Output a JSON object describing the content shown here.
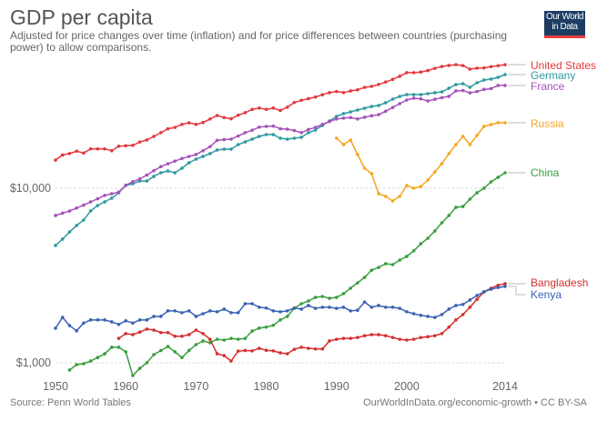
{
  "header": {
    "title": "GDP per capita",
    "subtitle": "Adjusted for price changes over time (inflation) and for price differences between countries (purchasing power) to allow comparisons.",
    "logo_text": "Our World in Data"
  },
  "footer": {
    "source": "Source: Penn World Tables",
    "credit": "OurWorldInData.org/economic-growth • CC BY-SA"
  },
  "chart_data": {
    "type": "line",
    "title": "GDP per capita",
    "xlabel": "",
    "ylabel": "",
    "y_scale": "log",
    "xlim": [
      1950,
      2014
    ],
    "ylim": [
      800,
      60000
    ],
    "x_ticks": [
      1950,
      1960,
      1970,
      1980,
      1990,
      2000,
      2014
    ],
    "x_tick_labels": [
      "1950",
      "1960",
      "1970",
      "1980",
      "1990",
      "2000",
      "2014"
    ],
    "y_ticks": [
      10000,
      1000
    ],
    "y_tick_labels": [
      "$10,000",
      "$1,000"
    ],
    "grid": "horizontal dashed",
    "legend": "inline labels at right end of lines",
    "series": [
      {
        "name": "United States",
        "color": "#e2393e",
        "start": 1950,
        "values": [
          14500,
          15500,
          15800,
          16300,
          15900,
          16800,
          16800,
          16800,
          16400,
          17400,
          17500,
          17600,
          18400,
          18900,
          19800,
          20800,
          21900,
          22300,
          23200,
          23700,
          23200,
          23800,
          24900,
          26100,
          25400,
          25000,
          26200,
          27100,
          28300,
          28800,
          28300,
          28800,
          27900,
          29100,
          31000,
          31900,
          32600,
          33300,
          34300,
          35300,
          35800,
          35300,
          36100,
          36600,
          37800,
          38300,
          39300,
          40600,
          42000,
          43800,
          45900,
          45900,
          46300,
          47200,
          48600,
          49800,
          50500,
          51000,
          50400,
          48100,
          48700,
          48900,
          49700,
          50300,
          51000
        ]
      },
      {
        "name": "Germany",
        "color": "#2f9aa0",
        "start": 1950,
        "values": [
          4700,
          5110,
          5620,
          6120,
          6570,
          7410,
          7960,
          8350,
          8770,
          9420,
          10370,
          10620,
          11000,
          11000,
          11690,
          12260,
          12560,
          12260,
          13020,
          13990,
          14680,
          15210,
          15780,
          16550,
          16740,
          16740,
          17780,
          18430,
          19110,
          19810,
          20290,
          20290,
          19340,
          19110,
          19340,
          19580,
          20780,
          21540,
          22870,
          24280,
          25780,
          26740,
          27380,
          28050,
          28730,
          29420,
          29780,
          30880,
          32360,
          33570,
          34380,
          34380,
          34380,
          34810,
          35240,
          35650,
          37390,
          39230,
          39720,
          37840,
          40200,
          41670,
          42170,
          43180,
          44770
        ]
      },
      {
        "name": "France",
        "color": "#a652ba",
        "start": 1950,
        "values": [
          6980,
          7200,
          7400,
          7700,
          8000,
          8350,
          8700,
          9100,
          9300,
          9500,
          10400,
          10900,
          11300,
          11900,
          12600,
          13300,
          13800,
          14300,
          14800,
          15200,
          15600,
          16400,
          17300,
          18800,
          19000,
          19100,
          19900,
          20800,
          21500,
          22400,
          22600,
          22700,
          21900,
          21800,
          21400,
          20800,
          21700,
          22300,
          23200,
          24100,
          24900,
          25200,
          25400,
          24900,
          25500,
          26000,
          26400,
          27600,
          29000,
          30500,
          32000,
          32800,
          32500,
          31600,
          32300,
          33000,
          33600,
          36100,
          36300,
          35200,
          35800,
          36800,
          37200,
          38800,
          38800
        ]
      },
      {
        "name": "Russia",
        "color": "#f5a623",
        "start": 1990,
        "values": [
          19340,
          17780,
          18880,
          15590,
          13020,
          12120,
          9306,
          8977,
          8455,
          8977,
          10370,
          10000,
          10240,
          11140,
          12410,
          13820,
          15770,
          17780,
          19810,
          17780,
          20050,
          22600,
          23160,
          23720,
          23720
        ]
      },
      {
        "name": "China",
        "color": "#3a9e3e",
        "start": 1952,
        "values": [
          909,
          976,
          988,
          1023,
          1072,
          1126,
          1227,
          1227,
          1156,
          845,
          929,
          1000,
          1114,
          1176,
          1240,
          1156,
          1072,
          1176,
          1271,
          1334,
          1303,
          1364,
          1349,
          1380,
          1364,
          1380,
          1520,
          1580,
          1600,
          1640,
          1760,
          1844,
          2054,
          2180,
          2260,
          2371,
          2400,
          2340,
          2371,
          2489,
          2673,
          2873,
          3085,
          3393,
          3517,
          3694,
          3650,
          3877,
          4069,
          4375,
          4808,
          5170,
          5690,
          6340,
          6980,
          7770,
          7860,
          8660,
          9420,
          10000,
          10870,
          11550,
          12260
        ]
      },
      {
        "name": "Bangladesh",
        "color": "#d42f2f",
        "start": 1959,
        "values": [
          1380,
          1470,
          1450,
          1500,
          1560,
          1540,
          1490,
          1490,
          1420,
          1420,
          1450,
          1540,
          1470,
          1364,
          1127,
          1100,
          1024,
          1167,
          1176,
          1170,
          1211,
          1180,
          1170,
          1140,
          1127,
          1195,
          1227,
          1211,
          1200,
          1200,
          1334,
          1364,
          1380,
          1380,
          1396,
          1430,
          1450,
          1450,
          1430,
          1396,
          1364,
          1349,
          1364,
          1396,
          1410,
          1430,
          1470,
          1600,
          1760,
          1890,
          2080,
          2310,
          2550,
          2670,
          2780,
          2840
        ]
      },
      {
        "name": "Kenya",
        "color": "#3a62b2",
        "start": 1950,
        "values": [
          1578,
          1820,
          1634,
          1525,
          1690,
          1760,
          1760,
          1760,
          1716,
          1660,
          1740,
          1690,
          1760,
          1760,
          1844,
          1844,
          1983,
          1983,
          1936,
          1983,
          1844,
          1910,
          1983,
          1960,
          2030,
          1936,
          1936,
          2180,
          2180,
          2080,
          2060,
          1983,
          1960,
          1983,
          2060,
          2030,
          2130,
          2050,
          2080,
          2080,
          2050,
          2080,
          1983,
          2000,
          2230,
          2080,
          2130,
          2080,
          2080,
          2050,
          1960,
          1910,
          1870,
          1844,
          1820,
          1890,
          2030,
          2130,
          2160,
          2290,
          2430,
          2550,
          2640,
          2700,
          2740
        ]
      }
    ]
  }
}
